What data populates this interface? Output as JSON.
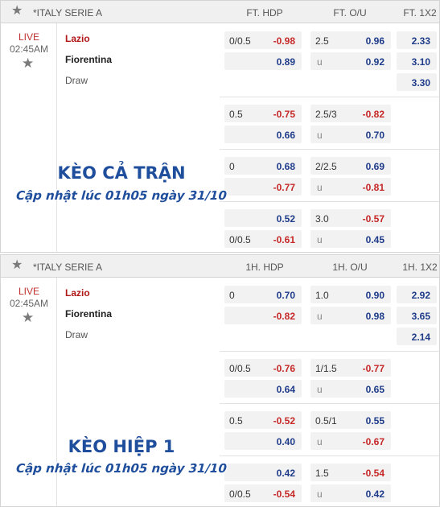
{
  "panels": [
    {
      "league": "*ITALY SERIE A",
      "cols": [
        "FT. HDP",
        "FT. O/U",
        "FT. 1X2"
      ],
      "status": "LIVE",
      "time": "02:45AM",
      "home": "Lazio",
      "away": "Fiorentina",
      "draw": "Draw",
      "x12": [
        "2.33",
        "3.10",
        "3.30"
      ],
      "rows": [
        {
          "hl": "0/0.5",
          "hp": "-0.98",
          "hs": "neg",
          "ol": "2.5",
          "op": "0.96",
          "os": "pos"
        },
        {
          "hl": "",
          "hp": "0.89",
          "hs": "pos",
          "ol": "u",
          "op": "0.92",
          "os": "pos"
        },
        {
          "hl": "0.5",
          "hp": "-0.75",
          "hs": "neg",
          "ol": "2.5/3",
          "op": "-0.82",
          "os": "neg"
        },
        {
          "hl": "",
          "hp": "0.66",
          "hs": "pos",
          "ol": "u",
          "op": "0.70",
          "os": "pos"
        },
        {
          "hl": "0",
          "hp": "0.68",
          "hs": "pos",
          "ol": "2/2.5",
          "op": "0.69",
          "os": "pos"
        },
        {
          "hl": "",
          "hp": "-0.77",
          "hs": "neg",
          "ol": "u",
          "op": "-0.81",
          "os": "neg"
        },
        {
          "hl": "",
          "hp": "0.52",
          "hs": "pos",
          "ol": "3.0",
          "op": "-0.57",
          "os": "neg"
        },
        {
          "hl": "0/0.5",
          "hp": "-0.61",
          "hs": "neg",
          "ol": "u",
          "op": "0.45",
          "os": "pos"
        }
      ],
      "overlay_title": "KÈO CẢ TRẬN",
      "overlay_sub": "Cập nhật lúc 01h05 ngày 31/10"
    },
    {
      "league": "*ITALY SERIE A",
      "cols": [
        "1H. HDP",
        "1H. O/U",
        "1H. 1X2"
      ],
      "status": "LIVE",
      "time": "02:45AM",
      "home": "Lazio",
      "away": "Fiorentina",
      "draw": "Draw",
      "x12": [
        "2.92",
        "3.65",
        "2.14"
      ],
      "rows": [
        {
          "hl": "0",
          "hp": "0.70",
          "hs": "pos",
          "ol": "1.0",
          "op": "0.90",
          "os": "pos"
        },
        {
          "hl": "",
          "hp": "-0.82",
          "hs": "neg",
          "ol": "u",
          "op": "0.98",
          "os": "pos"
        },
        {
          "hl": "0/0.5",
          "hp": "-0.76",
          "hs": "neg",
          "ol": "1/1.5",
          "op": "-0.77",
          "os": "neg"
        },
        {
          "hl": "",
          "hp": "0.64",
          "hs": "pos",
          "ol": "u",
          "op": "0.65",
          "os": "pos"
        },
        {
          "hl": "0.5",
          "hp": "-0.52",
          "hs": "neg",
          "ol": "0.5/1",
          "op": "0.55",
          "os": "pos"
        },
        {
          "hl": "",
          "hp": "0.40",
          "hs": "pos",
          "ol": "u",
          "op": "-0.67",
          "os": "neg"
        },
        {
          "hl": "",
          "hp": "0.42",
          "hs": "pos",
          "ol": "1.5",
          "op": "-0.54",
          "os": "neg"
        },
        {
          "hl": "0/0.5",
          "hp": "-0.54",
          "hs": "neg",
          "ol": "u",
          "op": "0.42",
          "os": "pos"
        }
      ],
      "overlay_title": "KÈO HIỆP 1",
      "overlay_sub": "Cập nhật lúc 01h05 ngày 31/10"
    }
  ]
}
